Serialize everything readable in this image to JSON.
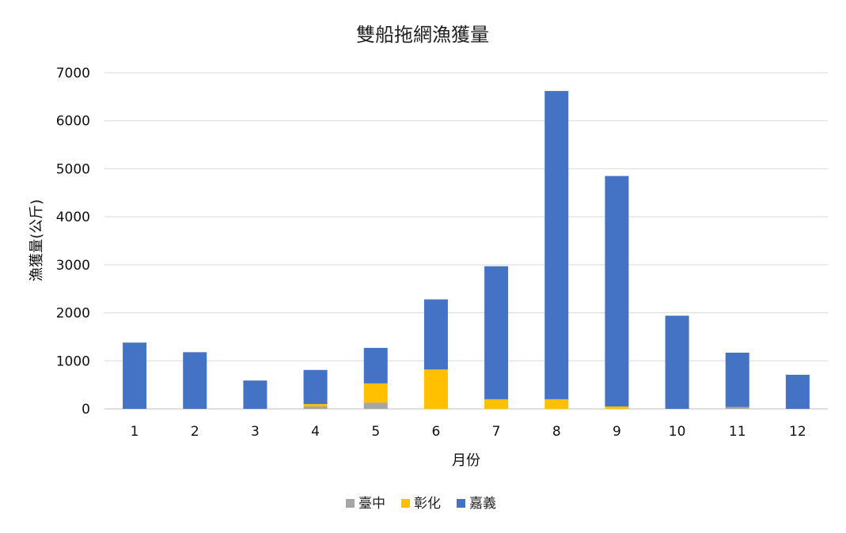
{
  "chart_data": {
    "type": "bar",
    "stacked": true,
    "title": "雙船拖網漁獲量",
    "xlabel": "月份",
    "ylabel": "漁獲量(公斤)",
    "ylim": [
      0,
      7000
    ],
    "yticks": [
      0,
      1000,
      2000,
      3000,
      4000,
      5000,
      6000,
      7000
    ],
    "categories": [
      "1",
      "2",
      "3",
      "4",
      "5",
      "6",
      "7",
      "8",
      "9",
      "10",
      "11",
      "12"
    ],
    "grid": true,
    "legend_position": "bottom",
    "series": [
      {
        "name": "臺中",
        "color": "#a5a5a5",
        "values": [
          0,
          0,
          0,
          50,
          130,
          0,
          0,
          0,
          0,
          0,
          40,
          0
        ]
      },
      {
        "name": "彰化",
        "color": "#ffc000",
        "values": [
          0,
          0,
          0,
          50,
          400,
          820,
          200,
          200,
          50,
          0,
          0,
          0
        ]
      },
      {
        "name": "嘉義",
        "color": "#4472c4",
        "values": [
          1380,
          1180,
          590,
          710,
          740,
          1460,
          2770,
          6420,
          4800,
          1940,
          1130,
          710
        ]
      }
    ]
  }
}
